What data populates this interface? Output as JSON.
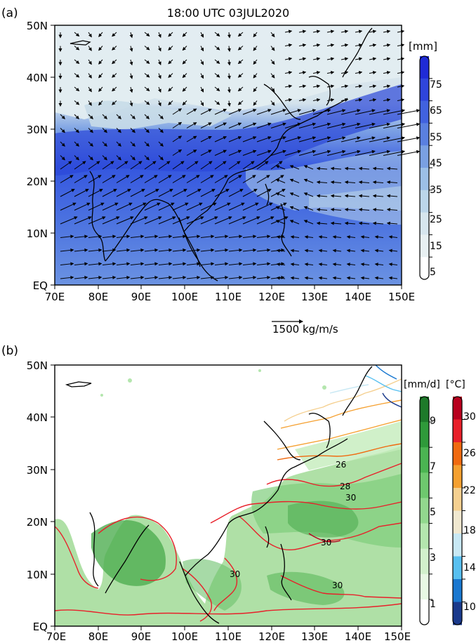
{
  "panel_a": {
    "label": "(a)",
    "title": "18:00 UTC 03JUL2020",
    "unit": "[mm]",
    "lat_labels": [
      "50N",
      "40N",
      "30N",
      "20N",
      "10N",
      "EQ"
    ],
    "lon_labels": [
      "70E",
      "80E",
      "90E",
      "100E",
      "110E",
      "120E",
      "130E",
      "140E",
      "150E"
    ],
    "colorbar_labels": [
      "75",
      "65",
      "55",
      "45",
      "35",
      "25",
      "15",
      "5"
    ],
    "colorbar_colors": [
      "#1f2bd6",
      "#2f45dc",
      "#4162df",
      "#5a80e0",
      "#7aa0e2",
      "#9cbfe6",
      "#bcd6ea",
      "#d7e6ee",
      "#e8f0f2",
      "#ffffff"
    ],
    "vector_ref_label": "1500 kg/m/s",
    "vector_ref_value": 1500
  },
  "panel_b": {
    "label": "(b)",
    "unit_precip": "[mm/d]",
    "unit_sst": "[°C]",
    "lat_labels": [
      "50N",
      "40N",
      "30N",
      "20N",
      "10N",
      "EQ"
    ],
    "lon_labels": [
      "70E",
      "80E",
      "90E",
      "100E",
      "110E",
      "120E",
      "130E",
      "140E",
      "150E"
    ],
    "precip_labels": [
      "9",
      "7",
      "5",
      "3",
      "1"
    ],
    "precip_colors": [
      "#1e7a2a",
      "#2f9a3a",
      "#4bb452",
      "#6ec86e",
      "#92d88e",
      "#b4e6ae",
      "#d2f0cc",
      "#e8f8e4",
      "#ffffff"
    ],
    "sst_labels": [
      "30",
      "26",
      "22",
      "18",
      "14",
      "10"
    ],
    "sst_colors": [
      "#b8001e",
      "#e8202a",
      "#f06a10",
      "#f5a030",
      "#f5d090",
      "#f0e8d0",
      "#c8e8f4",
      "#58c0f0",
      "#1a78d0",
      "#1a3a8c"
    ],
    "contour_labels": [
      "26",
      "28",
      "30",
      "30",
      "30",
      "30"
    ]
  }
}
